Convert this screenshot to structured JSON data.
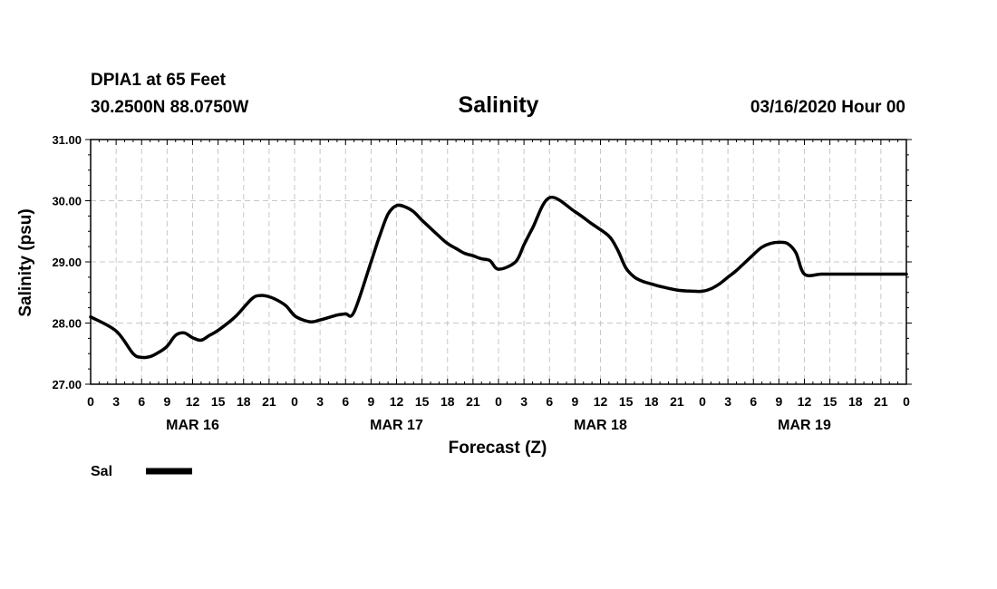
{
  "header": {
    "station": "DPIA1 at 65 Feet",
    "coords": "30.2500N 88.0750W",
    "title": "Salinity",
    "run": "03/16/2020 Hour 00"
  },
  "legend": {
    "label": "Sal"
  },
  "colors": {
    "line": "#000000",
    "grid": "#c8c8c8",
    "axis": "#000000"
  },
  "chart_data": {
    "type": "line",
    "title": "Salinity",
    "xlabel": "Forecast (Z)",
    "ylabel": "Salinity (psu)",
    "xlim": [
      0,
      96
    ],
    "ylim": [
      27,
      31
    ],
    "grid": true,
    "legend_position": "bottom-left",
    "y_ticks": [
      27,
      28,
      29,
      30,
      31
    ],
    "y_tick_labels": [
      "27.00",
      "28.00",
      "29.00",
      "30.00",
      "31.00"
    ],
    "x_ticks": [
      0,
      3,
      6,
      9,
      12,
      15,
      18,
      21,
      24,
      27,
      30,
      33,
      36,
      39,
      42,
      45,
      48,
      51,
      54,
      57,
      60,
      63,
      66,
      69,
      72,
      75,
      78,
      81,
      84,
      87,
      90,
      93,
      96
    ],
    "x_tick_labels": [
      "0",
      "3",
      "6",
      "9",
      "12",
      "15",
      "18",
      "21",
      "0",
      "3",
      "6",
      "9",
      "12",
      "15",
      "18",
      "21",
      "0",
      "3",
      "6",
      "9",
      "12",
      "15",
      "18",
      "21",
      "0",
      "3",
      "6",
      "9",
      "12",
      "15",
      "18",
      "21",
      "0"
    ],
    "day_labels": [
      {
        "label": "MAR 16",
        "hour": 12
      },
      {
        "label": "MAR 17",
        "hour": 36
      },
      {
        "label": "MAR 18",
        "hour": 60
      },
      {
        "label": "MAR 19",
        "hour": 84
      }
    ],
    "series": [
      {
        "name": "Sal",
        "x": [
          0,
          3,
          5,
          6,
          7,
          8,
          9,
          10,
          11,
          12,
          13,
          14,
          15,
          17,
          19,
          20,
          21,
          22,
          23,
          24,
          25,
          26,
          27,
          29,
          30,
          31,
          33,
          34,
          35,
          36,
          37,
          38,
          39,
          40,
          41,
          42,
          43,
          44,
          45,
          46,
          47,
          48,
          50,
          51,
          52,
          54,
          57,
          59,
          61,
          62,
          63,
          64,
          65,
          66,
          67,
          69,
          71,
          72,
          73,
          74,
          75,
          76,
          78,
          79,
          80,
          81,
          82,
          83,
          84,
          86,
          88,
          89,
          90,
          91,
          92,
          93,
          94,
          95,
          96
        ],
        "values": [
          28.1,
          27.87,
          27.5,
          27.44,
          27.45,
          27.52,
          27.62,
          27.8,
          27.84,
          27.76,
          27.72,
          27.8,
          27.88,
          28.1,
          28.4,
          28.45,
          28.43,
          28.37,
          28.28,
          28.12,
          28.05,
          28.02,
          28.05,
          28.13,
          28.15,
          28.18,
          29.0,
          29.42,
          29.78,
          29.92,
          29.9,
          29.82,
          29.68,
          29.55,
          29.42,
          29.3,
          29.22,
          29.14,
          29.1,
          29.05,
          29.02,
          28.88,
          29.0,
          29.28,
          29.55,
          30.05,
          29.82,
          29.62,
          29.42,
          29.2,
          28.9,
          28.75,
          28.68,
          28.64,
          28.6,
          28.54,
          28.52,
          28.52,
          28.56,
          28.64,
          28.75,
          28.86,
          29.12,
          29.24,
          29.3,
          29.32,
          29.3,
          29.15,
          28.8,
          28.8,
          28.8,
          28.8,
          28.8,
          28.8,
          28.8,
          28.8,
          28.8,
          28.8,
          28.8
        ]
      }
    ]
  }
}
